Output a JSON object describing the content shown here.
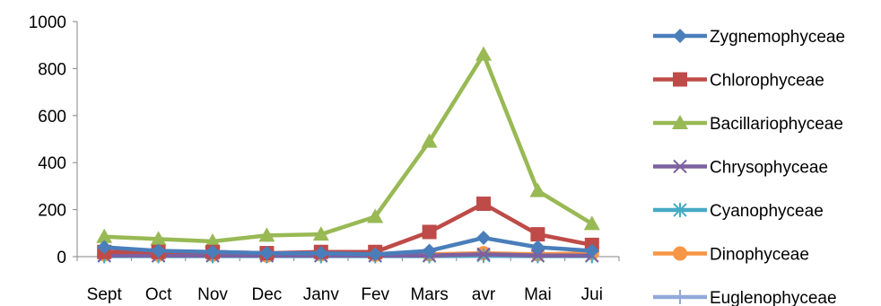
{
  "chart_data": {
    "type": "line",
    "categories": [
      "Sept",
      "Oct",
      "Nov",
      "Dec",
      "Janv",
      "Fev",
      "Mars",
      "avr",
      "Mai",
      "Jui"
    ],
    "ylim": [
      0,
      1000
    ],
    "yticks": [
      0,
      200,
      400,
      600,
      800,
      1000
    ],
    "grid": false,
    "legend_position": "right",
    "series": [
      {
        "name": "Zygnemophyceae",
        "color": "#4a7ebb",
        "marker": "diamond",
        "values": [
          40,
          25,
          20,
          15,
          15,
          10,
          25,
          80,
          40,
          25
        ]
      },
      {
        "name": "Chlorophyceae",
        "color": "#be4b48",
        "marker": "square",
        "values": [
          20,
          20,
          20,
          15,
          20,
          20,
          105,
          225,
          95,
          50
        ]
      },
      {
        "name": "Bacillariophyceae",
        "color": "#98b954",
        "marker": "triangle",
        "values": [
          85,
          75,
          65,
          90,
          95,
          170,
          490,
          860,
          280,
          140
        ]
      },
      {
        "name": "Chrysophyceae",
        "color": "#7d60a0",
        "marker": "x",
        "values": [
          5,
          5,
          5,
          5,
          5,
          5,
          5,
          10,
          5,
          5
        ]
      },
      {
        "name": "Cyanophyceae",
        "color": "#46aac5",
        "marker": "star",
        "values": [
          3,
          3,
          3,
          3,
          3,
          3,
          3,
          5,
          3,
          3
        ]
      },
      {
        "name": "Dinophyceae",
        "color": "#f79646",
        "marker": "circle",
        "values": [
          10,
          8,
          8,
          5,
          10,
          8,
          10,
          15,
          10,
          15
        ]
      },
      {
        "name": "Euglenophyceae",
        "color": "#92a9d8",
        "marker": "plus",
        "values": [
          2,
          2,
          2,
          2,
          2,
          2,
          2,
          3,
          2,
          2
        ]
      }
    ]
  }
}
